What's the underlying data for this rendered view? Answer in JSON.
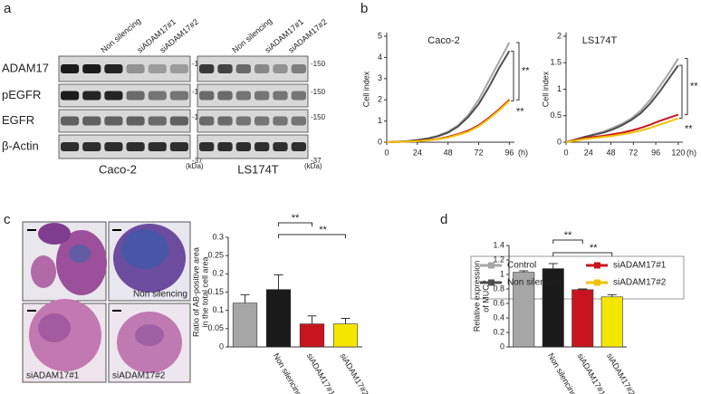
{
  "panel_labels": [
    "a",
    "b",
    "c",
    "d"
  ],
  "blot": {
    "columns": [
      "Non silencing",
      "siADAM17#1",
      "siADAM17#2"
    ],
    "rows": [
      "ADAM17",
      "pEGFR",
      "EGFR",
      "β-Actin"
    ],
    "markers": [
      "-150",
      "-150",
      "-150",
      "-37"
    ],
    "unit": "(kDa)",
    "cell_lines": [
      "Caco-2",
      "LS174T"
    ]
  },
  "micrographs": {
    "labels": [
      "Non silencing",
      "siADAM17#1",
      "siADAM17#2"
    ]
  },
  "chart_data": [
    {
      "type": "line",
      "title": "Caco-2",
      "y_label": "Cell index",
      "x_label": "(h)",
      "x": [
        0,
        8,
        16,
        24,
        32,
        40,
        48,
        56,
        64,
        72,
        80,
        88,
        96
      ],
      "series": [
        {
          "name": "Control",
          "color": "#a6a6a6",
          "values": [
            0,
            0.02,
            0.05,
            0.1,
            0.18,
            0.3,
            0.5,
            0.8,
            1.3,
            2.0,
            2.9,
            3.8,
            4.7
          ]
        },
        {
          "name": "Non silencing",
          "color": "#4d4d4d",
          "values": [
            0,
            0.02,
            0.05,
            0.1,
            0.17,
            0.28,
            0.45,
            0.75,
            1.2,
            1.8,
            2.6,
            3.5,
            4.3
          ]
        },
        {
          "name": "siADAM17#1",
          "color": "#c8141e",
          "values": [
            0,
            0.01,
            0.03,
            0.06,
            0.1,
            0.15,
            0.25,
            0.38,
            0.55,
            0.8,
            1.15,
            1.55,
            2.0
          ]
        },
        {
          "name": "siADAM17#2",
          "color": "#f2c100",
          "values": [
            0,
            0.01,
            0.03,
            0.05,
            0.09,
            0.14,
            0.22,
            0.35,
            0.5,
            0.75,
            1.1,
            1.5,
            1.95
          ]
        }
      ],
      "xlim": [
        0,
        100
      ],
      "xticks": [
        0,
        24,
        48,
        72,
        96
      ],
      "ylim": [
        0,
        5
      ],
      "yticks": [
        0,
        1,
        2,
        3,
        4,
        5
      ],
      "significance": [
        "**",
        "**"
      ]
    },
    {
      "type": "line",
      "title": "LS174T",
      "y_label": "Cell index",
      "x_label": "(h)",
      "x": [
        0,
        10,
        20,
        30,
        40,
        50,
        60,
        70,
        80,
        90,
        100,
        110,
        120
      ],
      "series": [
        {
          "name": "Control",
          "color": "#a6a6a6",
          "values": [
            0,
            0.05,
            0.1,
            0.15,
            0.2,
            0.27,
            0.35,
            0.45,
            0.6,
            0.8,
            1.05,
            1.3,
            1.58
          ]
        },
        {
          "name": "Non silencing",
          "color": "#4d4d4d",
          "values": [
            0,
            0.05,
            0.1,
            0.14,
            0.18,
            0.24,
            0.32,
            0.42,
            0.55,
            0.73,
            0.95,
            1.2,
            1.45
          ]
        },
        {
          "name": "siADAM17#1",
          "color": "#c8141e",
          "values": [
            0,
            0.04,
            0.08,
            0.1,
            0.12,
            0.15,
            0.18,
            0.22,
            0.27,
            0.33,
            0.4,
            0.46,
            0.52
          ]
        },
        {
          "name": "siADAM17#2",
          "color": "#f2c100",
          "values": [
            0,
            0.03,
            0.06,
            0.08,
            0.1,
            0.12,
            0.15,
            0.18,
            0.22,
            0.27,
            0.33,
            0.39,
            0.45
          ]
        }
      ],
      "xlim": [
        0,
        125
      ],
      "xticks": [
        0,
        24,
        48,
        72,
        96,
        120
      ],
      "ylim": [
        0,
        2
      ],
      "yticks": [
        0,
        0.5,
        1,
        1.5,
        2
      ],
      "significance": [
        "**",
        "**"
      ]
    },
    {
      "type": "bar",
      "y_label": [
        "Ratio of AB-positive area",
        "in the total cell area"
      ],
      "categories": [
        null,
        "Non silencing",
        "siADAM17#1",
        "siADAM17#2"
      ],
      "values": [
        0.12,
        0.157,
        0.063,
        0.063
      ],
      "error": [
        0.023,
        0.04,
        0.022,
        0.015
      ],
      "colors": [
        "#a6a6a6",
        "#1a1a1a",
        "#c8141e",
        "#f5e600"
      ],
      "ylim": [
        0,
        0.3
      ],
      "yticks": [
        0,
        0.05,
        0.1,
        0.15,
        0.2,
        0.25,
        0.3
      ],
      "significance": [
        "**",
        "**"
      ]
    },
    {
      "type": "bar",
      "y_label": [
        "Relative expression",
        "of MUC2"
      ],
      "categories": [
        null,
        "Non silencing",
        "siADAM17#1",
        "siADAM17#2"
      ],
      "values": [
        1.03,
        1.08,
        0.79,
        0.69
      ],
      "error": [
        0.02,
        0.07,
        0.01,
        0.03
      ],
      "colors": [
        "#a6a6a6",
        "#1a1a1a",
        "#c8141e",
        "#f5e600"
      ],
      "ylim": [
        0,
        1.4
      ],
      "yticks": [
        0,
        0.2,
        0.4,
        0.6,
        0.8,
        1,
        1.2,
        1.4
      ],
      "significance": [
        "**",
        "**"
      ]
    }
  ]
}
